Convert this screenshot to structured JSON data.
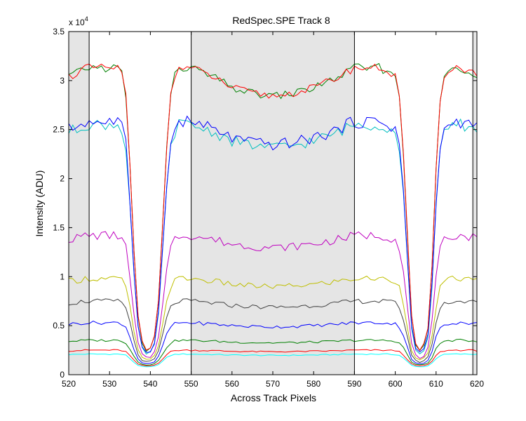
{
  "chart_data": {
    "type": "line",
    "title": "RedSpec.SPE   Track 8",
    "xlabel": "Across Track Pixels",
    "ylabel": "Intensity (ADU)",
    "y_multiplier_label": "x 10",
    "y_multiplier_exponent": "4",
    "xlim": [
      520,
      620
    ],
    "ylim": [
      0,
      35000
    ],
    "x_ticks": [
      520,
      530,
      540,
      550,
      560,
      570,
      580,
      590,
      600,
      610,
      620
    ],
    "y_ticks": [
      0,
      5000,
      10000,
      15000,
      20000,
      25000,
      30000,
      35000
    ],
    "y_tick_labels": [
      "0",
      "0.5",
      "1",
      "1.5",
      "2",
      "2.5",
      "3",
      "3.5"
    ],
    "grid": false,
    "legend": "none",
    "shaded_regions": [
      [
        520,
        525
      ],
      [
        550,
        590
      ],
      [
        619,
        620
      ]
    ],
    "vertical_lines": [
      525,
      550,
      590,
      619
    ],
    "profile": {
      "x": [
        520,
        522,
        524,
        526,
        528,
        530,
        532,
        533,
        534,
        535,
        536,
        537,
        538,
        539,
        540,
        541,
        542,
        543,
        544,
        545,
        546,
        547,
        548,
        550,
        555,
        560,
        565,
        570,
        575,
        580,
        585,
        590,
        592,
        594,
        596,
        598,
        600,
        601,
        602,
        603,
        604,
        605,
        606,
        607,
        608,
        609,
        610,
        611,
        612,
        614,
        616,
        618,
        620
      ],
      "shape": [
        0.97,
        0.98,
        1.0,
        1.0,
        1.0,
        1.0,
        1.0,
        0.98,
        0.9,
        0.65,
        0.35,
        0.12,
        0.03,
        0.0,
        0.01,
        0.05,
        0.18,
        0.45,
        0.72,
        0.9,
        0.97,
        1.0,
        1.0,
        1.0,
        0.97,
        0.93,
        0.91,
        0.9,
        0.91,
        0.93,
        0.96,
        1.0,
        1.0,
        1.0,
        1.0,
        0.99,
        0.97,
        0.9,
        0.7,
        0.4,
        0.12,
        0.02,
        0.0,
        0.02,
        0.08,
        0.3,
        0.65,
        0.88,
        0.96,
        1.0,
        1.0,
        0.99,
        0.98
      ]
    },
    "series": [
      {
        "color": "#00ffff",
        "min": 800,
        "plateau": 2100,
        "noise": 60
      },
      {
        "color": "#ff0000",
        "min": 900,
        "plateau": 2500,
        "noise": 80
      },
      {
        "color": "#008000",
        "min": 1000,
        "plateau": 3500,
        "noise": 120
      },
      {
        "color": "#0000ff",
        "min": 1100,
        "plateau": 5300,
        "noise": 180
      },
      {
        "color": "#404040",
        "min": 1300,
        "plateau": 7500,
        "noise": 250
      },
      {
        "color": "#bfbf00",
        "min": 1500,
        "plateau": 9800,
        "noise": 320
      },
      {
        "color": "#bf00bf",
        "min": 1700,
        "plateau": 14200,
        "noise": 450
      },
      {
        "color": "#00bfbf",
        "min": 2000,
        "plateau": 25500,
        "noise": 600
      },
      {
        "color": "#0000ff",
        "min": 2200,
        "plateau": 25800,
        "noise": 650
      },
      {
        "color": "#008000",
        "min": 2400,
        "plateau": 31300,
        "noise": 450
      },
      {
        "color": "#ff0000",
        "min": 2500,
        "plateau": 31300,
        "noise": 400
      }
    ]
  }
}
